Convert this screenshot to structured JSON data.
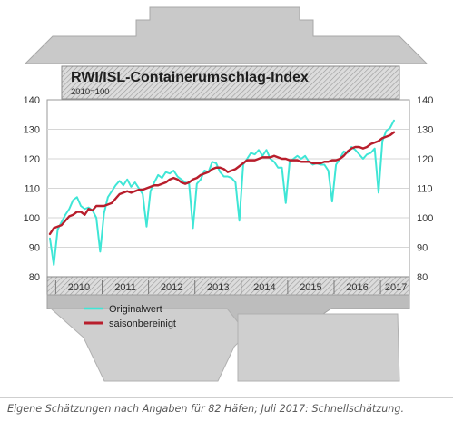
{
  "chart_data": {
    "type": "line",
    "title": "RWI/ISL-Containerumschlag-Index",
    "subtitle": "2010=100",
    "y_ticks": [
      80,
      90,
      100,
      110,
      120,
      130,
      140
    ],
    "ylim": [
      80,
      140
    ],
    "x_ticks": [
      "2010",
      "2011",
      "2012",
      "2013",
      "2014",
      "2015",
      "2016",
      "2017"
    ],
    "x_start": "2009-11",
    "grid": true,
    "legend_position": "bottom-left",
    "series": [
      {
        "name": "Originalwert",
        "color": "#3fe6d6",
        "values": [
          93.0,
          84.0,
          96.0,
          98.5,
          101.0,
          103.0,
          106.0,
          107.0,
          104.0,
          103.0,
          103.5,
          102.5,
          100.0,
          88.5,
          101.5,
          107.0,
          109.0,
          111.0,
          112.5,
          111.0,
          113.0,
          110.5,
          112.0,
          110.0,
          108.0,
          97.0,
          109.0,
          112.0,
          114.5,
          113.5,
          115.5,
          115.0,
          116.0,
          114.0,
          113.0,
          112.0,
          111.5,
          96.5,
          111.5,
          113.0,
          116.0,
          115.5,
          119.0,
          118.5,
          115.5,
          114.0,
          114.0,
          113.5,
          112.0,
          99.0,
          118.0,
          120.0,
          122.0,
          121.5,
          123.0,
          121.0,
          123.0,
          120.0,
          119.0,
          117.0,
          117.0,
          105.0,
          119.0,
          120.0,
          121.0,
          120.0,
          121.0,
          119.0,
          118.0,
          118.5,
          118.0,
          118.0,
          116.0,
          105.5,
          118.0,
          120.0,
          122.5,
          122.0,
          124.0,
          123.0,
          121.5,
          120.0,
          121.5,
          122.0,
          123.5,
          108.5,
          126.0,
          129.5,
          130.5,
          133.0
        ]
      },
      {
        "name": "saisonbereinigt",
        "color": "#b81e2c",
        "values": [
          94.5,
          96.5,
          97.0,
          97.5,
          99.0,
          100.5,
          101.0,
          102.0,
          102.0,
          101.0,
          103.0,
          102.5,
          104.0,
          104.0,
          104.0,
          104.5,
          105.0,
          106.5,
          108.0,
          108.5,
          109.0,
          108.5,
          109.0,
          109.5,
          109.5,
          110.0,
          110.5,
          111.0,
          111.0,
          111.5,
          112.0,
          113.0,
          113.5,
          113.0,
          112.0,
          111.5,
          112.0,
          113.0,
          113.5,
          114.5,
          115.0,
          115.5,
          116.5,
          117.0,
          117.0,
          116.5,
          115.5,
          116.0,
          116.5,
          117.5,
          118.5,
          119.5,
          119.5,
          119.5,
          120.0,
          120.5,
          120.5,
          120.5,
          121.0,
          120.5,
          120.0,
          120.0,
          119.5,
          119.5,
          119.5,
          119.0,
          119.0,
          119.0,
          118.5,
          118.5,
          118.5,
          119.0,
          119.0,
          119.5,
          119.5,
          120.0,
          121.0,
          122.5,
          123.5,
          124.0,
          124.0,
          123.5,
          124.0,
          125.0,
          125.5,
          126.0,
          127.0,
          127.5,
          128.0,
          129.0
        ]
      }
    ]
  },
  "caption": "Eigene Schätzungen nach Angaben für 82 Häfen; Juli 2017: Schnellschätzung."
}
